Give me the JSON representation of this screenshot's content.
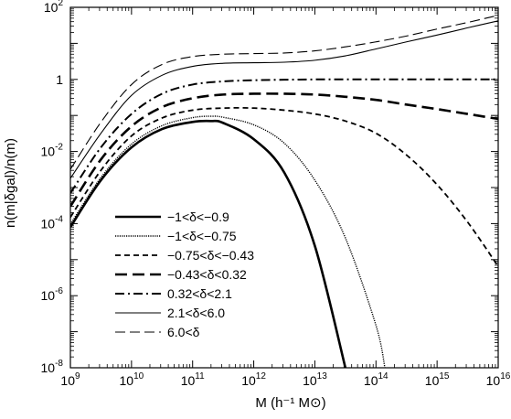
{
  "chart_data": {
    "type": "line",
    "title": "",
    "xlabel": "M (h⁻¹ M⊙)",
    "ylabel": "n(m|δgal)/n(m)",
    "xlog": true,
    "ylog": true,
    "xlim": [
      1000000000.0,
      1e+16
    ],
    "ylim": [
      1e-08,
      100
    ],
    "grid": false,
    "legend_position": "lower-left",
    "x_ticks": [
      {
        "value": 1000000000.0,
        "base": "10",
        "exp": "9"
      },
      {
        "value": 10000000000.0,
        "base": "10",
        "exp": "10"
      },
      {
        "value": 100000000000.0,
        "base": "10",
        "exp": "11"
      },
      {
        "value": 1000000000000.0,
        "base": "10",
        "exp": "12"
      },
      {
        "value": 10000000000000.0,
        "base": "10",
        "exp": "13"
      },
      {
        "value": 100000000000000.0,
        "base": "10",
        "exp": "14"
      },
      {
        "value": 1000000000000000.0,
        "base": "10",
        "exp": "15"
      },
      {
        "value": 1e+16,
        "base": "10",
        "exp": "16"
      }
    ],
    "y_ticks": [
      {
        "value": 1e-08,
        "base": "10",
        "exp": "-8"
      },
      {
        "value": 1e-06,
        "base": "10",
        "exp": "-6"
      },
      {
        "value": 0.0001,
        "base": "10",
        "exp": "-4"
      },
      {
        "value": 0.01,
        "base": "10",
        "exp": "-2"
      },
      {
        "value": 1,
        "base": "1",
        "exp": "0"
      },
      {
        "value": 100,
        "base": "10",
        "exp": "2"
      }
    ],
    "series": [
      {
        "name": "−1<δ<−0.9",
        "style": "solid-thick",
        "x": [
          1000000000.0,
          3160000000.0,
          10000000000.0,
          31600000000.0,
          100000000000.0,
          200000000000.0,
          316000000000.0,
          1000000000000.0,
          3160000000000.0,
          10000000000000.0,
          31600000000000.0
        ],
        "y": [
          8e-05,
          0.0016,
          0.013,
          0.042,
          0.066,
          0.07,
          0.062,
          0.022,
          0.0026,
          2.4e-05,
          1e-08
        ]
      },
      {
        "name": "−1<δ<−0.75",
        "style": "dotted",
        "x": [
          1000000000.0,
          3160000000.0,
          10000000000.0,
          31600000000.0,
          100000000000.0,
          200000000000.0,
          316000000000.0,
          1000000000000.0,
          3160000000000.0,
          10000000000000.0,
          31600000000000.0,
          100000000000000.0,
          140000000000000.0
        ],
        "y": [
          9.5e-05,
          0.0019,
          0.016,
          0.052,
          0.087,
          0.095,
          0.089,
          0.055,
          0.017,
          0.0016,
          4e-05,
          1.5e-07,
          1e-08
        ]
      },
      {
        "name": "−0.75<δ<−0.43",
        "style": "dashed-short",
        "x": [
          1000000000.0,
          3160000000.0,
          10000000000.0,
          31600000000.0,
          100000000000.0,
          316000000000.0,
          1000000000000.0,
          3160000000000.0,
          10000000000000.0,
          31600000000000.0,
          100000000000000.0,
          316000000000000.0,
          1000000000000000.0,
          3160000000000000.0,
          1e+16
        ],
        "y": [
          0.00015,
          0.003,
          0.027,
          0.085,
          0.14,
          0.16,
          0.16,
          0.14,
          0.11,
          0.07,
          0.032,
          0.008,
          0.0012,
          0.00011,
          6.5e-06
        ]
      },
      {
        "name": "−0.43<δ<0.32",
        "style": "dashed-long",
        "x": [
          1000000000.0,
          3160000000.0,
          10000000000.0,
          31600000000.0,
          100000000000.0,
          316000000000.0,
          1000000000000.0,
          3160000000000.0,
          10000000000000.0,
          31600000000000.0,
          100000000000000.0,
          316000000000000.0,
          1000000000000000.0,
          3160000000000000.0,
          1e+16
        ],
        "y": [
          0.0003,
          0.006,
          0.05,
          0.17,
          0.3,
          0.38,
          0.4,
          0.4,
          0.38,
          0.33,
          0.27,
          0.2,
          0.15,
          0.11,
          0.08
        ]
      },
      {
        "name": "0.32<δ<2.1",
        "style": "dashdot",
        "x": [
          1000000000.0,
          3160000000.0,
          10000000000.0,
          31600000000.0,
          100000000000.0,
          316000000000.0,
          1000000000000.0,
          3160000000000.0,
          10000000000000.0,
          31600000000000.0,
          100000000000000.0,
          1000000000000000.0,
          1e+16
        ],
        "y": [
          0.0007,
          0.013,
          0.11,
          0.4,
          0.72,
          0.88,
          0.95,
          0.98,
          1.0,
          1.0,
          1.0,
          1.0,
          1.0
        ]
      },
      {
        "name": "2.1<δ<6.0",
        "style": "solid-thin",
        "x": [
          1000000000.0,
          3160000000.0,
          10000000000.0,
          31600000000.0,
          100000000000.0,
          316000000000.0,
          1000000000000.0,
          3160000000000.0,
          10000000000000.0,
          31600000000000.0,
          100000000000000.0,
          316000000000000.0,
          1000000000000000.0,
          3160000000000000.0,
          1e+16
        ],
        "y": [
          0.0018,
          0.032,
          0.36,
          1.3,
          2.3,
          2.8,
          2.9,
          3.0,
          3.4,
          4.5,
          7,
          11,
          17,
          27,
          42
        ]
      },
      {
        "name": "6.0<δ",
        "style": "dashed-medium",
        "x": [
          1000000000.0,
          3160000000.0,
          10000000000.0,
          31600000000.0,
          100000000000.0,
          316000000000.0,
          1000000000000.0,
          3160000000000.0,
          10000000000000.0,
          31600000000000.0,
          100000000000000.0,
          316000000000000.0,
          1000000000000000.0,
          3160000000000000.0,
          1e+16
        ],
        "y": [
          0.0032,
          0.065,
          0.72,
          2.6,
          4.3,
          5.0,
          5.2,
          5.4,
          6.2,
          8,
          11,
          16,
          25,
          38,
          60
        ]
      }
    ]
  }
}
